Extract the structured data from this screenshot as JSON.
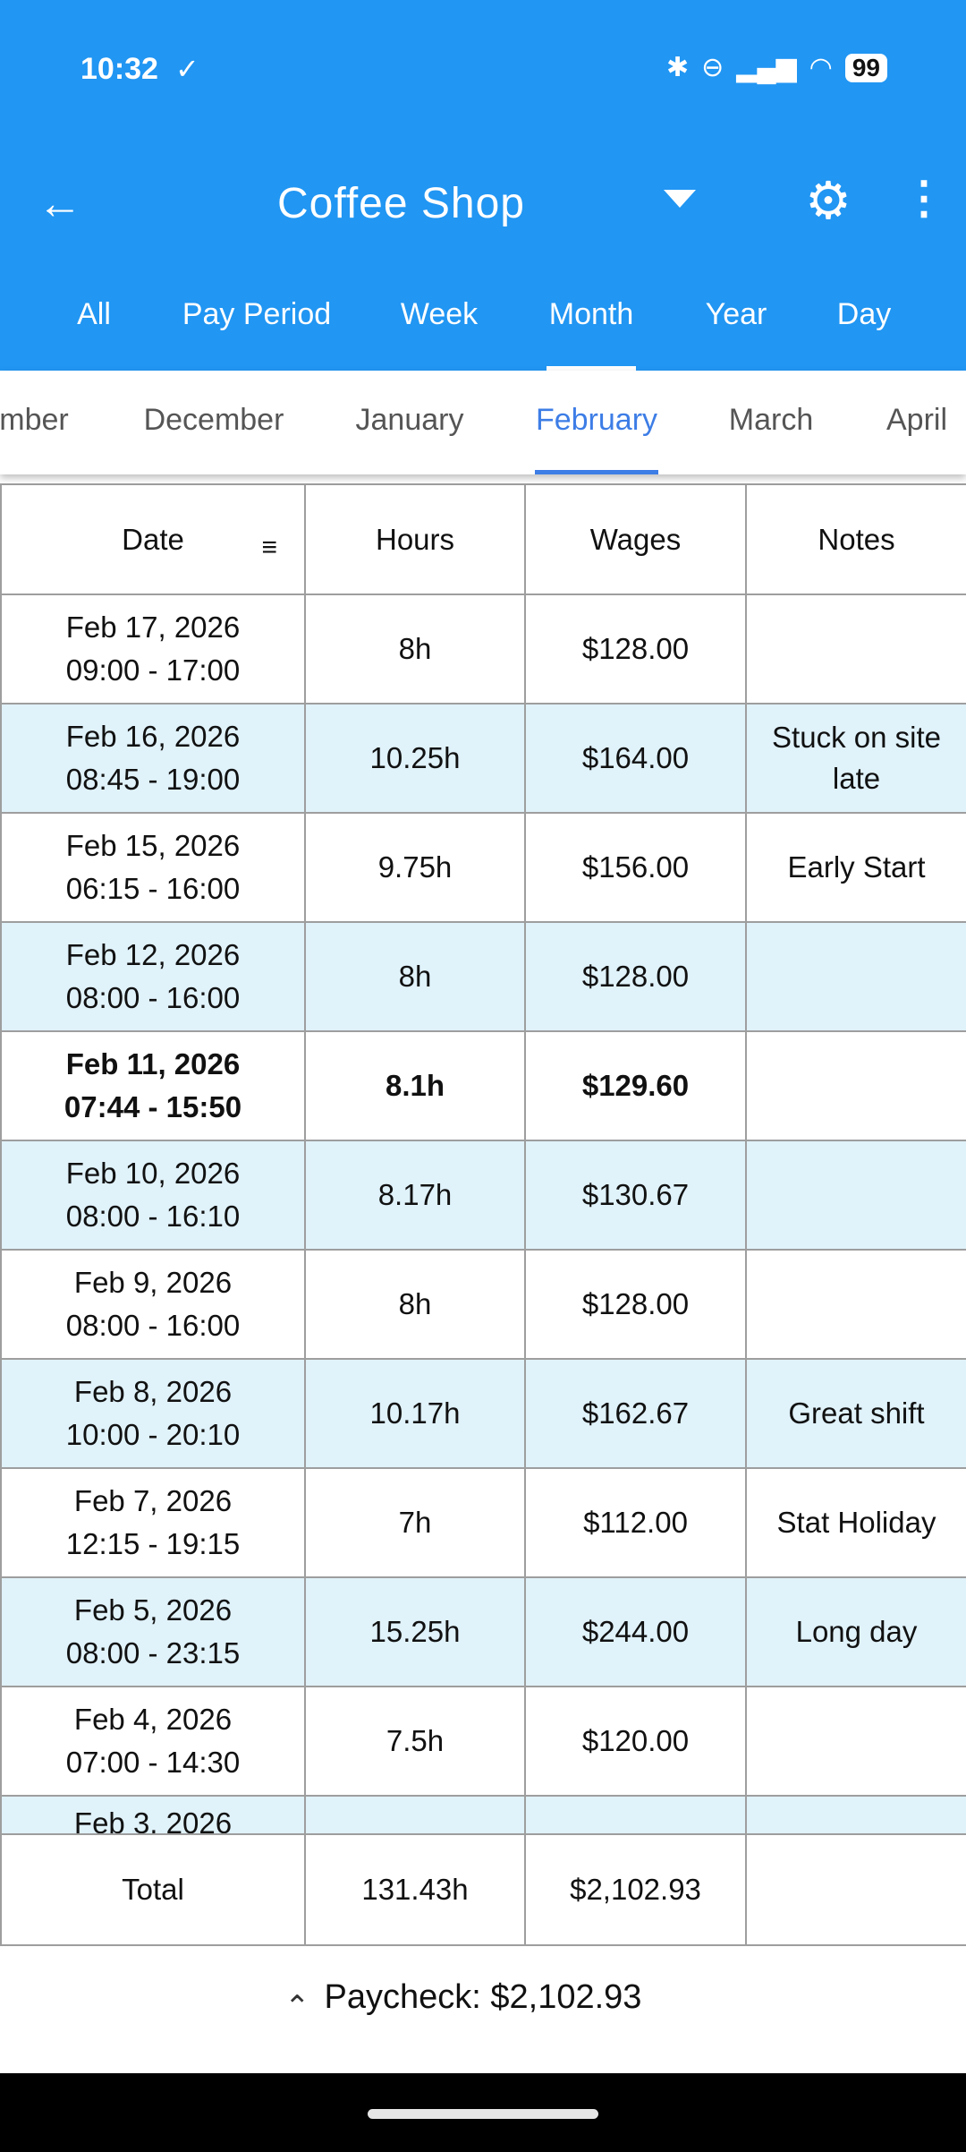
{
  "status_bar": {
    "time": "10:32",
    "battery": "99"
  },
  "header": {
    "title": "Coffee Shop"
  },
  "period_tabs": [
    "All",
    "Pay Period",
    "Week",
    "Month",
    "Year",
    "Day"
  ],
  "active_period_tab": "Month",
  "month_tabs": [
    "mber",
    "December",
    "January",
    "February",
    "March",
    "April"
  ],
  "active_month": "February",
  "table": {
    "headers": [
      "Date",
      "Hours",
      "Wages",
      "Notes"
    ],
    "rows": [
      {
        "date": "Feb 17, 2026",
        "time": "09:00 - 17:00",
        "hours": "8h",
        "wages": "$128.00",
        "notes": ""
      },
      {
        "date": "Feb 16, 2026",
        "time": "08:45 - 19:00",
        "hours": "10.25h",
        "wages": "$164.00",
        "notes": "Stuck on site late"
      },
      {
        "date": "Feb 15, 2026",
        "time": "06:15 - 16:00",
        "hours": "9.75h",
        "wages": "$156.00",
        "notes": "Early Start"
      },
      {
        "date": "Feb 12, 2026",
        "time": "08:00 - 16:00",
        "hours": "8h",
        "wages": "$128.00",
        "notes": ""
      },
      {
        "date": "Feb 11, 2026",
        "time": "07:44 - 15:50",
        "hours": "8.1h",
        "wages": "$129.60",
        "notes": "",
        "bold": true
      },
      {
        "date": "Feb 10, 2026",
        "time": "08:00 - 16:10",
        "hours": "8.17h",
        "wages": "$130.67",
        "notes": ""
      },
      {
        "date": "Feb 9, 2026",
        "time": "08:00 - 16:00",
        "hours": "8h",
        "wages": "$128.00",
        "notes": ""
      },
      {
        "date": "Feb 8, 2026",
        "time": "10:00 - 20:10",
        "hours": "10.17h",
        "wages": "$162.67",
        "notes": "Great shift"
      },
      {
        "date": "Feb 7, 2026",
        "time": "12:15 - 19:15",
        "hours": "7h",
        "wages": "$112.00",
        "notes": "Stat Holiday"
      },
      {
        "date": "Feb 5, 2026",
        "time": "08:00 - 23:15",
        "hours": "15.25h",
        "wages": "$244.00",
        "notes": "Long day"
      },
      {
        "date": "Feb 4, 2026",
        "time": "07:00 - 14:30",
        "hours": "7.5h",
        "wages": "$120.00",
        "notes": ""
      }
    ],
    "partial_row": {
      "date": "Feb 3, 2026"
    },
    "total": {
      "label": "Total",
      "hours": "131.43h",
      "wages": "$2,102.93",
      "notes": ""
    }
  },
  "paycheck": "Paycheck: $2,102.93",
  "colors": {
    "primary": "#2196f3",
    "accent": "#3d7de6",
    "stripe": "#e0f2fa"
  }
}
